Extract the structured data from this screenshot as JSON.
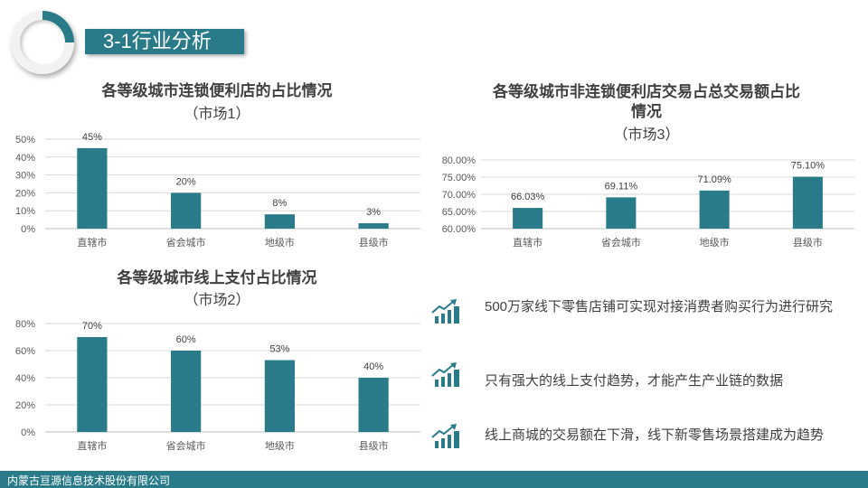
{
  "header": {
    "title": "3-1行业分析"
  },
  "chart_data": [
    {
      "type": "bar",
      "title": "各等级城市连锁便利店的占比情况",
      "subtitle": "（市场1）",
      "categories": [
        "直辖市",
        "省会城市",
        "地级市",
        "县级市"
      ],
      "values": [
        45,
        20,
        8,
        3
      ],
      "value_labels": [
        "45%",
        "20%",
        "8%",
        "3%"
      ],
      "ylim": [
        0,
        50
      ],
      "yticks": [
        "0%",
        "10%",
        "20%",
        "30%",
        "40%",
        "50%"
      ],
      "grid": true,
      "color": "#2a7b8a"
    },
    {
      "type": "bar",
      "title": "各等级城市线上支付占比情况",
      "subtitle": "（市场2）",
      "categories": [
        "直辖市",
        "省会城市",
        "地级市",
        "县级市"
      ],
      "values": [
        70,
        60,
        53,
        40
      ],
      "value_labels": [
        "70%",
        "60%",
        "53%",
        "40%"
      ],
      "ylim": [
        0,
        80
      ],
      "yticks": [
        "0%",
        "20%",
        "40%",
        "60%",
        "80%"
      ],
      "grid": true,
      "color": "#2a7b8a"
    },
    {
      "type": "bar",
      "title": "各等级城市非连锁便利店交易占总交易额占比情况",
      "title_lines": [
        "各等级城市非连锁便利店交易占总交易额占比",
        "情况"
      ],
      "subtitle": "（市场3）",
      "categories": [
        "直辖市",
        "省会城市",
        "地级市",
        "县级市"
      ],
      "values": [
        66.03,
        69.11,
        71.09,
        75.1
      ],
      "value_labels": [
        "66.03%",
        "69.11%",
        "71.09%",
        "75.10%"
      ],
      "ylim": [
        60,
        80
      ],
      "yticks": [
        "60.00%",
        "65.00%",
        "70.00%",
        "75.00%",
        "80.00%"
      ],
      "grid": true,
      "color": "#2a7b8a"
    }
  ],
  "bullets": [
    {
      "icon": "growth-chart-icon",
      "text": "500万家线下零售店铺可实现对接消费者购买行为进行研究"
    },
    {
      "icon": "growth-chart-icon",
      "text": "只有强大的线上支付趋势，才能产生产业链的数据"
    },
    {
      "icon": "growth-chart-icon",
      "text": "线上商城的交易额在下滑，线下新零售场景搭建成为趋势"
    }
  ],
  "footer": {
    "company": "内蒙古亘源信息技术股份有限公司"
  }
}
